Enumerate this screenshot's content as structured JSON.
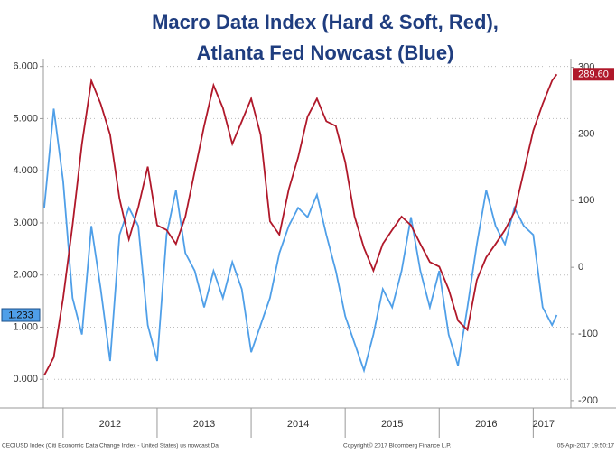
{
  "chart_data": {
    "type": "line",
    "title": [
      "Macro Data Index (Hard & Soft, Red),",
      "Atlanta Fed Nowcast (Blue)"
    ],
    "x": [
      2011.8,
      2011.9,
      2012.0,
      2012.1,
      2012.2,
      2012.3,
      2012.4,
      2012.5,
      2012.6,
      2012.7,
      2012.8,
      2012.9,
      2013.0,
      2013.1,
      2013.2,
      2013.3,
      2013.4,
      2013.5,
      2013.6,
      2013.7,
      2013.8,
      2013.9,
      2014.0,
      2014.1,
      2014.2,
      2014.3,
      2014.4,
      2014.5,
      2014.6,
      2014.7,
      2014.8,
      2014.9,
      2015.0,
      2015.1,
      2015.2,
      2015.3,
      2015.4,
      2015.5,
      2015.6,
      2015.7,
      2015.8,
      2015.9,
      2016.0,
      2016.1,
      2016.2,
      2016.3,
      2016.4,
      2016.5,
      2016.6,
      2016.7,
      2016.8,
      2016.9,
      2017.0,
      2017.1,
      2017.2,
      2017.25
    ],
    "xlim": [
      2011.79,
      2017.4
    ],
    "xticks": [
      {
        "value": 2012.5,
        "label": "2012"
      },
      {
        "value": 2013.5,
        "label": "2013"
      },
      {
        "value": 2014.5,
        "label": "2014"
      },
      {
        "value": 2015.5,
        "label": "2015"
      },
      {
        "value": 2016.5,
        "label": "2016"
      },
      {
        "value": 2017.11,
        "label": "2017"
      }
    ],
    "year_separators": [
      2012,
      2013,
      2014,
      2015,
      2016,
      2017
    ],
    "ylim": [
      -0.55,
      6.15
    ],
    "yticks": [
      {
        "value": 0,
        "label": "0.000"
      },
      {
        "value": 1,
        "label": "1.000"
      },
      {
        "value": 2,
        "label": "2.000"
      },
      {
        "value": 3,
        "label": "3.000"
      },
      {
        "value": 4,
        "label": "4.000"
      },
      {
        "value": 5,
        "label": "5.000"
      },
      {
        "value": 6,
        "label": "6.000"
      }
    ],
    "y2lim": [
      -211,
      313
    ],
    "y2ticks": [
      -200,
      -100,
      0,
      100,
      200,
      300
    ],
    "grid": true,
    "series": [
      {
        "name": "Atlanta Fed Nowcast",
        "color": "#4f9fe8",
        "last_label": "1.233",
        "values": [
          3.29,
          5.19,
          3.8,
          1.56,
          0.86,
          2.94,
          1.73,
          0.35,
          2.77,
          3.29,
          2.94,
          1.04,
          0.35,
          2.77,
          3.63,
          2.42,
          2.08,
          1.38,
          2.08,
          1.56,
          2.25,
          1.73,
          0.52,
          1.04,
          1.56,
          2.42,
          2.94,
          3.29,
          3.11,
          3.54,
          2.77,
          2.08,
          1.21,
          0.69,
          0.17,
          0.86,
          1.73,
          1.38,
          2.08,
          3.11,
          2.08,
          1.38,
          2.08,
          0.86,
          0.26,
          1.38,
          2.59,
          3.63,
          2.94,
          2.59,
          3.29,
          2.94,
          2.77,
          1.38,
          1.04,
          1.233
        ]
      },
      {
        "name": "Macro Data Index",
        "color": "#b0182a",
        "axis": "y2",
        "last_label": "289.60",
        "values": [
          -162,
          -135,
          -46,
          63,
          185,
          280,
          245,
          199,
          103,
          42,
          90,
          151,
          63,
          56,
          35,
          76,
          144,
          212,
          273,
          239,
          185,
          219,
          253,
          199,
          69,
          49,
          117,
          165,
          226,
          253,
          219,
          212,
          158,
          76,
          29,
          -5,
          35,
          56,
          76,
          63,
          35,
          8,
          1,
          -33,
          -80,
          -94,
          -19,
          15,
          35,
          56,
          83,
          144,
          205,
          245,
          280,
          289.6
        ]
      }
    ],
    "footer": [
      "CECIUSD Index (Citi Economic Data Change Index - United States) us nowcast Dai",
      "Copyright© 2017 Bloomberg Finance L.P.",
      "05-Apr-2017 19:50:17"
    ]
  }
}
